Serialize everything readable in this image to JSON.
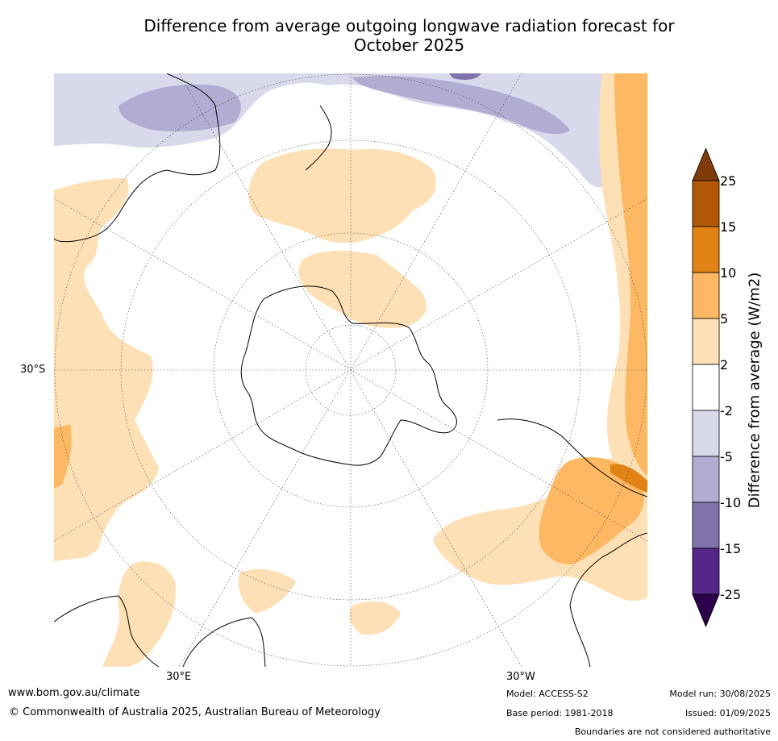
{
  "title_line1": "Difference from average outgoing longwave radiation forecast for",
  "title_line2": "October 2025",
  "map": {
    "projection": "south polar stereographic",
    "lat_label": "30°S",
    "lon_labels": [
      "30°E",
      "30°W"
    ],
    "gridlines": "dotted"
  },
  "colorbar": {
    "title": "Difference from average (W/m2)",
    "ticks": [
      "25",
      "15",
      "10",
      "5",
      "2",
      "-2",
      "-5",
      "-10",
      "-15",
      "-25"
    ],
    "colors": {
      "pos_over": "#7f3b08",
      "pos_15_25": "#b35806",
      "pos_10_15": "#e08214",
      "pos_5_10": "#fdb863",
      "pos_2_5": "#fee0b6",
      "neutral": "#ffffff",
      "neg_2_5": "#d8daeb",
      "neg_5_10": "#b2abd2",
      "neg_10_15": "#8073ac",
      "neg_15_25": "#542788",
      "neg_under": "#2d004b"
    }
  },
  "footer": {
    "url": "www.bom.gov.au/climate",
    "copyright": "© Commonwealth of Australia 2025, Australian Bureau of Meteorology",
    "model": "Model: ACCESS-S2",
    "base_period": "Base period: 1981-2018",
    "model_run": "Model run: 30/08/2025",
    "issued": "Issued: 01/09/2025",
    "boundaries": "Boundaries are not considered authoritative"
  }
}
